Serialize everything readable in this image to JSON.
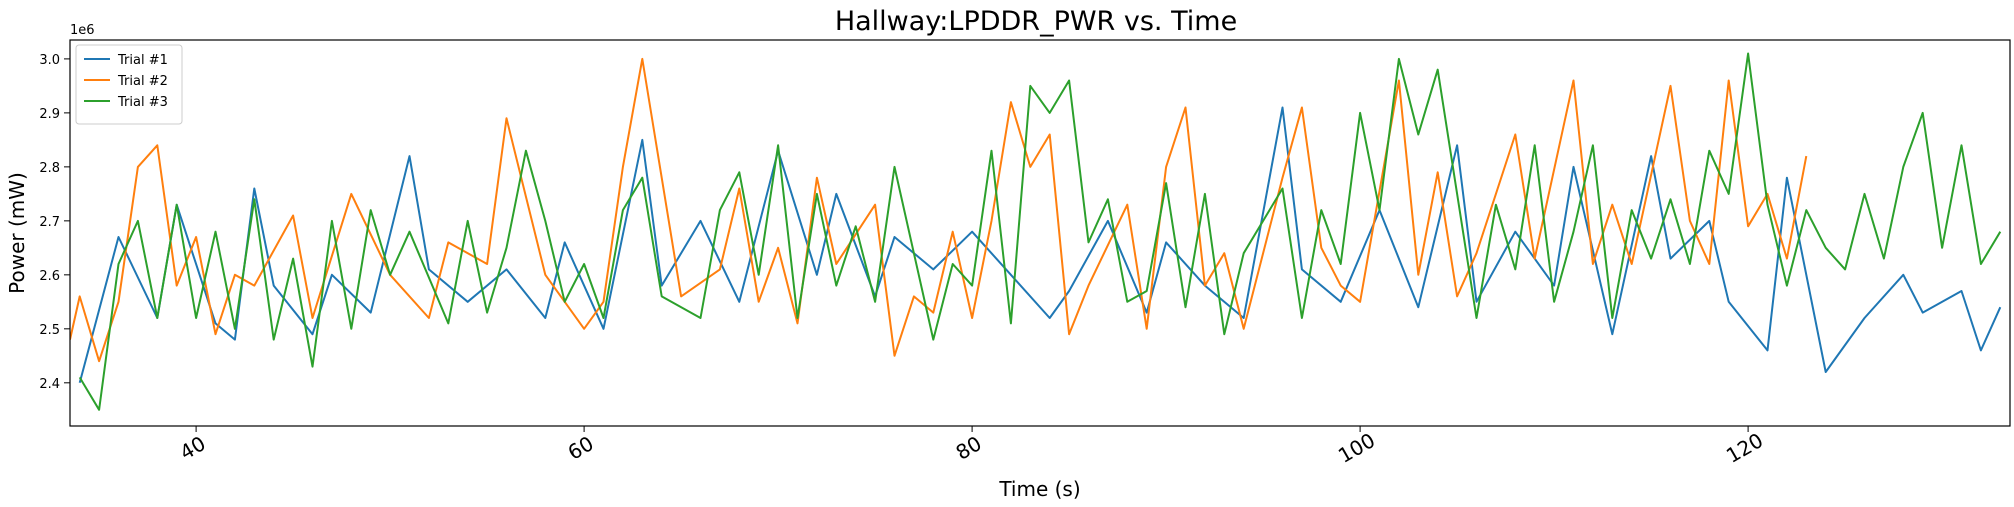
{
  "chart_data": {
    "type": "line",
    "title": "Hallway:LPDDR_PWR vs. Time",
    "xlabel": "Time (s)",
    "ylabel": "Power (mW)",
    "y_offset_label": "1e6",
    "y_scale": 1000000,
    "xlim": [
      33.5,
      133.5
    ],
    "ylim": [
      2.32,
      3.035
    ],
    "xticks": [
      40,
      60,
      80,
      100,
      120
    ],
    "xtick_labels": [
      "40",
      "60",
      "80",
      "100",
      "120"
    ],
    "yticks": [
      2.4,
      2.5,
      2.6,
      2.7,
      2.8,
      2.9,
      3.0
    ],
    "ytick_labels": [
      "2.4",
      "2.5",
      "2.6",
      "2.7",
      "2.8",
      "2.9",
      "3.0"
    ],
    "legend_position": "top-left",
    "series": [
      {
        "name": "Trial #1",
        "color": "#1f77b4",
        "x": [
          34,
          36,
          38,
          39,
          41,
          42,
          43,
          44,
          46,
          47,
          49,
          51,
          52,
          54,
          56,
          58,
          59,
          61,
          63,
          64,
          66,
          68,
          70,
          72,
          73,
          75,
          76,
          78,
          80,
          82,
          84,
          85,
          87,
          89,
          90,
          92,
          94,
          96,
          97,
          99,
          101,
          103,
          105,
          106,
          108,
          110,
          111,
          113,
          115,
          116,
          118,
          119,
          121,
          122,
          124,
          126,
          128,
          129,
          131,
          132,
          133
        ],
        "y": [
          2.4,
          2.67,
          2.52,
          2.73,
          2.51,
          2.48,
          2.76,
          2.58,
          2.49,
          2.6,
          2.53,
          2.82,
          2.61,
          2.55,
          2.61,
          2.52,
          2.66,
          2.5,
          2.85,
          2.58,
          2.7,
          2.55,
          2.83,
          2.6,
          2.75,
          2.56,
          2.67,
          2.61,
          2.68,
          2.6,
          2.52,
          2.57,
          2.7,
          2.53,
          2.66,
          2.58,
          2.52,
          2.91,
          2.61,
          2.55,
          2.72,
          2.54,
          2.84,
          2.55,
          2.68,
          2.58,
          2.8,
          2.49,
          2.82,
          2.63,
          2.7,
          2.55,
          2.46,
          2.78,
          2.42,
          2.52,
          2.6,
          2.53,
          2.57,
          2.46,
          2.54
        ]
      },
      {
        "name": "Trial #2",
        "color": "#ff7f0e",
        "x": [
          33.5,
          34,
          35,
          36,
          37,
          38,
          39,
          40,
          41,
          42,
          43,
          45,
          46,
          48,
          50,
          52,
          53,
          55,
          56,
          58,
          60,
          61,
          62,
          63,
          64,
          65,
          67,
          68,
          69,
          70,
          71,
          72,
          73,
          75,
          76,
          77,
          78,
          79,
          80,
          81,
          82,
          83,
          84,
          85,
          86,
          88,
          89,
          90,
          91,
          92,
          93,
          94,
          96,
          97,
          98,
          99,
          100,
          102,
          103,
          104,
          105,
          106,
          107,
          108,
          109,
          111,
          112,
          113,
          114,
          116,
          117,
          118,
          119,
          120,
          121,
          122,
          123
        ],
        "y": [
          2.48,
          2.56,
          2.44,
          2.55,
          2.8,
          2.84,
          2.58,
          2.67,
          2.49,
          2.6,
          2.58,
          2.71,
          2.52,
          2.75,
          2.6,
          2.52,
          2.66,
          2.62,
          2.89,
          2.6,
          2.5,
          2.55,
          2.8,
          3.0,
          2.78,
          2.56,
          2.61,
          2.76,
          2.55,
          2.65,
          2.51,
          2.78,
          2.62,
          2.73,
          2.45,
          2.56,
          2.53,
          2.68,
          2.52,
          2.7,
          2.92,
          2.8,
          2.86,
          2.49,
          2.58,
          2.73,
          2.5,
          2.8,
          2.91,
          2.58,
          2.64,
          2.5,
          2.78,
          2.91,
          2.65,
          2.58,
          2.55,
          2.96,
          2.6,
          2.79,
          2.56,
          2.64,
          2.75,
          2.86,
          2.63,
          2.96,
          2.62,
          2.73,
          2.62,
          2.95,
          2.7,
          2.62,
          2.96,
          2.69,
          2.75,
          2.63,
          2.82
        ]
      },
      {
        "name": "Trial #3",
        "color": "#2ca02c",
        "x": [
          34,
          35,
          36,
          37,
          38,
          39,
          40,
          41,
          42,
          43,
          44,
          45,
          46,
          47,
          48,
          49,
          50,
          51,
          53,
          54,
          55,
          56,
          57,
          58,
          59,
          60,
          61,
          62,
          63,
          64,
          66,
          67,
          68,
          69,
          70,
          71,
          72,
          73,
          74,
          75,
          76,
          78,
          79,
          80,
          81,
          82,
          83,
          84,
          85,
          86,
          87,
          88,
          89,
          90,
          91,
          92,
          93,
          94,
          96,
          97,
          98,
          99,
          100,
          101,
          102,
          103,
          104,
          106,
          107,
          108,
          109,
          110,
          111,
          112,
          113,
          114,
          115,
          116,
          117,
          118,
          119,
          120,
          121,
          122,
          123,
          124,
          125,
          126,
          127,
          128,
          129,
          130,
          131,
          132,
          133
        ],
        "y": [
          2.41,
          2.35,
          2.62,
          2.7,
          2.52,
          2.73,
          2.52,
          2.68,
          2.5,
          2.74,
          2.48,
          2.63,
          2.43,
          2.7,
          2.5,
          2.72,
          2.6,
          2.68,
          2.51,
          2.7,
          2.53,
          2.65,
          2.83,
          2.7,
          2.55,
          2.62,
          2.52,
          2.72,
          2.78,
          2.56,
          2.52,
          2.72,
          2.79,
          2.6,
          2.84,
          2.52,
          2.75,
          2.58,
          2.69,
          2.55,
          2.8,
          2.48,
          2.62,
          2.58,
          2.83,
          2.51,
          2.95,
          2.9,
          2.96,
          2.66,
          2.74,
          2.55,
          2.57,
          2.77,
          2.54,
          2.75,
          2.49,
          2.64,
          2.76,
          2.52,
          2.72,
          2.62,
          2.9,
          2.72,
          3.0,
          2.86,
          2.98,
          2.52,
          2.73,
          2.61,
          2.84,
          2.55,
          2.68,
          2.84,
          2.52,
          2.72,
          2.63,
          2.74,
          2.62,
          2.83,
          2.75,
          3.01,
          2.73,
          2.58,
          2.72,
          2.65,
          2.61,
          2.75,
          2.63,
          2.8,
          2.9,
          2.65,
          2.84,
          2.62,
          2.68
        ]
      }
    ]
  }
}
